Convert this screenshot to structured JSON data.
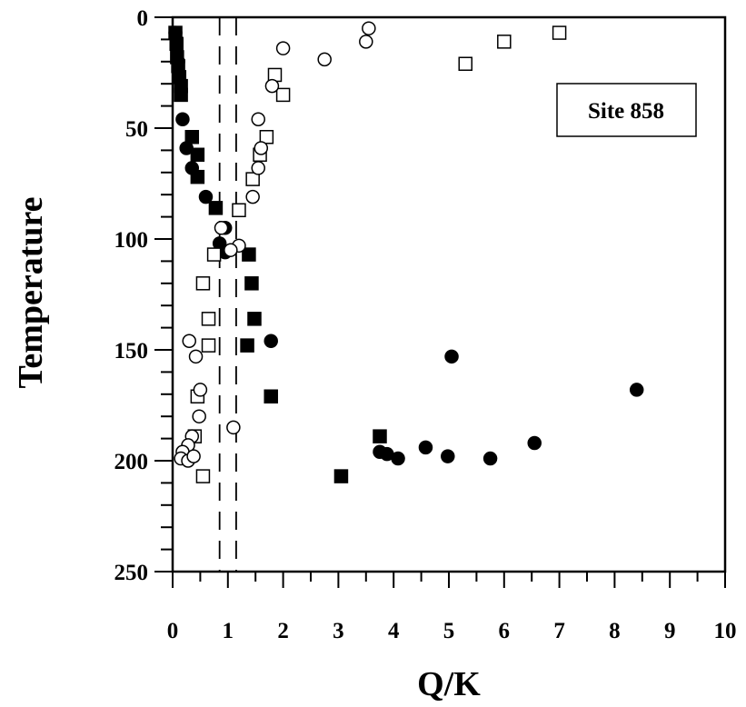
{
  "chart_data": {
    "type": "scatter",
    "title": "",
    "xlabel": "Q/K",
    "ylabel": "Temperature",
    "xlim": [
      0,
      10
    ],
    "ylim": [
      0,
      250
    ],
    "y_inverted": true,
    "x_ticks": [
      0,
      1,
      2,
      3,
      4,
      5,
      6,
      7,
      8,
      9,
      10
    ],
    "y_ticks": [
      0,
      50,
      100,
      150,
      200,
      250
    ],
    "annotation": "Site 858",
    "reference_lines_x": [
      0.85,
      1.15
    ],
    "series": [
      {
        "marker": "filled-square",
        "points": [
          [
            0.05,
            7
          ],
          [
            0.07,
            12
          ],
          [
            0.08,
            18
          ],
          [
            0.1,
            22
          ],
          [
            0.12,
            27
          ],
          [
            0.15,
            31
          ],
          [
            0.15,
            35
          ],
          [
            0.35,
            54
          ],
          [
            0.45,
            62
          ],
          [
            0.45,
            72
          ],
          [
            0.78,
            86
          ],
          [
            1.38,
            107
          ],
          [
            1.43,
            120
          ],
          [
            1.48,
            136
          ],
          [
            1.35,
            148
          ],
          [
            1.78,
            171
          ],
          [
            3.75,
            189
          ],
          [
            3.05,
            207
          ]
        ]
      },
      {
        "marker": "filled-circle",
        "points": [
          [
            0.05,
            7
          ],
          [
            0.1,
            20
          ],
          [
            0.12,
            27
          ],
          [
            0.18,
            46
          ],
          [
            0.25,
            59
          ],
          [
            0.35,
            68
          ],
          [
            0.6,
            81
          ],
          [
            0.95,
            95
          ],
          [
            0.85,
            102
          ],
          [
            0.95,
            106
          ],
          [
            1.78,
            146
          ],
          [
            5.05,
            153
          ],
          [
            3.75,
            196
          ],
          [
            3.88,
            197
          ],
          [
            4.08,
            199
          ],
          [
            4.58,
            194
          ],
          [
            4.98,
            198
          ],
          [
            5.75,
            199
          ],
          [
            6.55,
            192
          ],
          [
            8.4,
            168
          ]
        ]
      },
      {
        "marker": "open-square",
        "points": [
          [
            1.85,
            26
          ],
          [
            2.0,
            35
          ],
          [
            1.7,
            54
          ],
          [
            1.58,
            62
          ],
          [
            1.45,
            73
          ],
          [
            1.2,
            87
          ],
          [
            0.75,
            107
          ],
          [
            0.55,
            120
          ],
          [
            0.65,
            136
          ],
          [
            0.65,
            148
          ],
          [
            0.45,
            171
          ],
          [
            0.4,
            189
          ],
          [
            0.55,
            207
          ],
          [
            5.3,
            21
          ],
          [
            6.0,
            11
          ],
          [
            7.0,
            7
          ]
        ]
      },
      {
        "marker": "open-circle",
        "points": [
          [
            2.0,
            14
          ],
          [
            2.75,
            19
          ],
          [
            3.5,
            11
          ],
          [
            3.55,
            5
          ],
          [
            1.8,
            31
          ],
          [
            1.55,
            46
          ],
          [
            1.6,
            59
          ],
          [
            1.55,
            68
          ],
          [
            1.45,
            81
          ],
          [
            0.88,
            95
          ],
          [
            1.2,
            103
          ],
          [
            1.05,
            105
          ],
          [
            0.3,
            146
          ],
          [
            0.42,
            153
          ],
          [
            0.5,
            168
          ],
          [
            0.48,
            180
          ],
          [
            1.1,
            185
          ],
          [
            0.35,
            189
          ],
          [
            0.28,
            193
          ],
          [
            0.18,
            196
          ],
          [
            0.15,
            199
          ],
          [
            0.28,
            200
          ],
          [
            0.38,
            198
          ]
        ]
      }
    ]
  }
}
